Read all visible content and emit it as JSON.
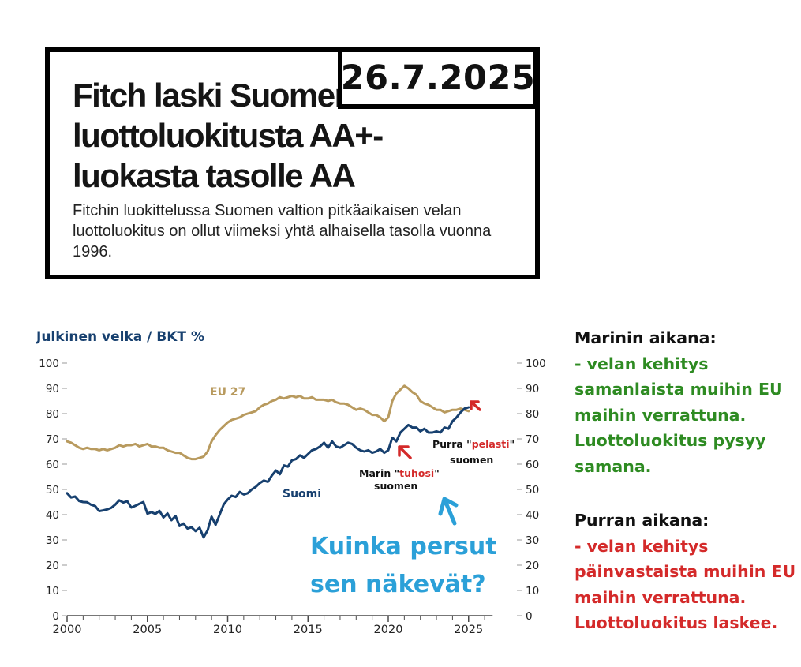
{
  "date_badge": "26.7.2025",
  "headline": "Fitch laski Suomen luottoluokitusta AA+-luokasta tasolle AA",
  "lede": "Fitchin luokittelussa Suomen valtion pitkäaikaisen velan luottoluokitus on ollut viimeksi yhtä alhaisella tasolla vuonna 1996.",
  "colors": {
    "suomi": "#17406f",
    "eu27": "#b89a5e",
    "axis": "#4a4a4a",
    "blue_text": "#2ba0d8",
    "green": "#2e8b22",
    "red": "#d42a2a"
  },
  "chart_data": {
    "type": "line",
    "title": "Julkinen velka / BKT %",
    "xlim": [
      2000,
      2026.5
    ],
    "ylim": [
      0,
      100
    ],
    "x_ticks": [
      2000,
      2005,
      2010,
      2015,
      2020,
      2025
    ],
    "y_ticks": [
      0,
      10,
      20,
      30,
      40,
      50,
      60,
      70,
      80,
      90,
      100
    ],
    "series": [
      {
        "name": "Suomi",
        "color": "#17406f",
        "points": [
          [
            2000.0,
            48.5
          ],
          [
            2000.25,
            46.8
          ],
          [
            2000.5,
            47.2
          ],
          [
            2000.75,
            45.4
          ],
          [
            2001.0,
            45.0
          ],
          [
            2001.25,
            44.9
          ],
          [
            2001.5,
            43.9
          ],
          [
            2001.75,
            43.4
          ],
          [
            2002.0,
            41.4
          ],
          [
            2002.25,
            41.7
          ],
          [
            2002.5,
            42.1
          ],
          [
            2002.75,
            42.7
          ],
          [
            2003.0,
            44.0
          ],
          [
            2003.25,
            45.7
          ],
          [
            2003.5,
            44.8
          ],
          [
            2003.75,
            45.3
          ],
          [
            2004.0,
            42.8
          ],
          [
            2004.25,
            43.5
          ],
          [
            2004.5,
            44.3
          ],
          [
            2004.75,
            45.0
          ],
          [
            2005.0,
            40.4
          ],
          [
            2005.25,
            41.0
          ],
          [
            2005.5,
            40.3
          ],
          [
            2005.75,
            41.5
          ],
          [
            2006.0,
            38.9
          ],
          [
            2006.25,
            40.5
          ],
          [
            2006.5,
            37.8
          ],
          [
            2006.75,
            39.5
          ],
          [
            2007.0,
            35.5
          ],
          [
            2007.25,
            36.5
          ],
          [
            2007.5,
            34.5
          ],
          [
            2007.75,
            35.0
          ],
          [
            2008.0,
            33.5
          ],
          [
            2008.25,
            34.8
          ],
          [
            2008.5,
            31.0
          ],
          [
            2008.75,
            33.8
          ],
          [
            2009.0,
            39.2
          ],
          [
            2009.25,
            36.0
          ],
          [
            2009.5,
            40.0
          ],
          [
            2009.75,
            44.0
          ],
          [
            2010.0,
            46.0
          ],
          [
            2010.25,
            47.5
          ],
          [
            2010.5,
            47.0
          ],
          [
            2010.75,
            49.0
          ],
          [
            2011.0,
            48.0
          ],
          [
            2011.25,
            48.5
          ],
          [
            2011.5,
            50.0
          ],
          [
            2011.75,
            51.0
          ],
          [
            2012.0,
            52.5
          ],
          [
            2012.25,
            53.5
          ],
          [
            2012.5,
            53.0
          ],
          [
            2012.75,
            55.5
          ],
          [
            2013.0,
            57.5
          ],
          [
            2013.25,
            56.0
          ],
          [
            2013.5,
            59.5
          ],
          [
            2013.75,
            59.0
          ],
          [
            2014.0,
            61.5
          ],
          [
            2014.25,
            62.0
          ],
          [
            2014.5,
            63.5
          ],
          [
            2014.75,
            62.5
          ],
          [
            2015.0,
            64.0
          ],
          [
            2015.25,
            65.5
          ],
          [
            2015.5,
            66.0
          ],
          [
            2015.75,
            67.0
          ],
          [
            2016.0,
            68.5
          ],
          [
            2016.25,
            66.5
          ],
          [
            2016.5,
            69.0
          ],
          [
            2016.75,
            67.0
          ],
          [
            2017.0,
            66.5
          ],
          [
            2017.25,
            67.5
          ],
          [
            2017.5,
            68.5
          ],
          [
            2017.75,
            68.0
          ],
          [
            2018.0,
            66.5
          ],
          [
            2018.25,
            65.5
          ],
          [
            2018.5,
            65.0
          ],
          [
            2018.75,
            65.5
          ],
          [
            2019.0,
            64.5
          ],
          [
            2019.25,
            65.0
          ],
          [
            2019.5,
            66.0
          ],
          [
            2019.75,
            64.5
          ],
          [
            2020.0,
            65.5
          ],
          [
            2020.25,
            70.5
          ],
          [
            2020.5,
            69.0
          ],
          [
            2020.75,
            72.5
          ],
          [
            2021.0,
            74.0
          ],
          [
            2021.25,
            75.5
          ],
          [
            2021.5,
            74.5
          ],
          [
            2021.75,
            74.5
          ],
          [
            2022.0,
            73.0
          ],
          [
            2022.25,
            74.0
          ],
          [
            2022.5,
            72.5
          ],
          [
            2022.75,
            72.5
          ],
          [
            2023.0,
            73.0
          ],
          [
            2023.25,
            72.5
          ],
          [
            2023.5,
            74.5
          ],
          [
            2023.75,
            74.0
          ],
          [
            2024.0,
            77.0
          ],
          [
            2024.25,
            78.5
          ],
          [
            2024.5,
            80.5
          ],
          [
            2024.75,
            82.0
          ],
          [
            2025.0,
            82.5
          ]
        ]
      },
      {
        "name": "EU 27",
        "color": "#b89a5e",
        "points": [
          [
            2000.0,
            69.0
          ],
          [
            2000.25,
            68.5
          ],
          [
            2000.5,
            67.5
          ],
          [
            2000.75,
            66.5
          ],
          [
            2001.0,
            66.0
          ],
          [
            2001.25,
            66.5
          ],
          [
            2001.5,
            66.0
          ],
          [
            2001.75,
            66.0
          ],
          [
            2002.0,
            65.5
          ],
          [
            2002.25,
            66.0
          ],
          [
            2002.5,
            65.5
          ],
          [
            2002.75,
            66.0
          ],
          [
            2003.0,
            66.5
          ],
          [
            2003.25,
            67.5
          ],
          [
            2003.5,
            67.0
          ],
          [
            2003.75,
            67.5
          ],
          [
            2004.0,
            67.5
          ],
          [
            2004.25,
            68.0
          ],
          [
            2004.5,
            67.0
          ],
          [
            2004.75,
            67.5
          ],
          [
            2005.0,
            68.0
          ],
          [
            2005.25,
            67.0
          ],
          [
            2005.5,
            67.0
          ],
          [
            2005.75,
            66.5
          ],
          [
            2006.0,
            66.5
          ],
          [
            2006.25,
            65.5
          ],
          [
            2006.5,
            65.0
          ],
          [
            2006.75,
            64.5
          ],
          [
            2007.0,
            64.5
          ],
          [
            2007.25,
            63.5
          ],
          [
            2007.5,
            62.5
          ],
          [
            2007.75,
            62.0
          ],
          [
            2008.0,
            62.0
          ],
          [
            2008.25,
            62.5
          ],
          [
            2008.5,
            63.0
          ],
          [
            2008.75,
            65.0
          ],
          [
            2009.0,
            69.0
          ],
          [
            2009.25,
            71.5
          ],
          [
            2009.5,
            73.5
          ],
          [
            2009.75,
            75.0
          ],
          [
            2010.0,
            76.5
          ],
          [
            2010.25,
            77.5
          ],
          [
            2010.5,
            78.0
          ],
          [
            2010.75,
            78.5
          ],
          [
            2011.0,
            79.5
          ],
          [
            2011.25,
            80.0
          ],
          [
            2011.5,
            80.5
          ],
          [
            2011.75,
            81.0
          ],
          [
            2012.0,
            82.5
          ],
          [
            2012.25,
            83.5
          ],
          [
            2012.5,
            84.0
          ],
          [
            2012.75,
            85.0
          ],
          [
            2013.0,
            85.5
          ],
          [
            2013.25,
            86.5
          ],
          [
            2013.5,
            86.0
          ],
          [
            2013.75,
            86.5
          ],
          [
            2014.0,
            87.0
          ],
          [
            2014.25,
            86.5
          ],
          [
            2014.5,
            87.0
          ],
          [
            2014.75,
            86.0
          ],
          [
            2015.0,
            86.0
          ],
          [
            2015.25,
            86.5
          ],
          [
            2015.5,
            85.5
          ],
          [
            2015.75,
            85.5
          ],
          [
            2016.0,
            85.5
          ],
          [
            2016.25,
            85.0
          ],
          [
            2016.5,
            85.5
          ],
          [
            2016.75,
            84.5
          ],
          [
            2017.0,
            84.0
          ],
          [
            2017.25,
            84.0
          ],
          [
            2017.5,
            83.5
          ],
          [
            2017.75,
            82.5
          ],
          [
            2018.0,
            81.5
          ],
          [
            2018.25,
            82.0
          ],
          [
            2018.5,
            81.5
          ],
          [
            2018.75,
            80.5
          ],
          [
            2019.0,
            79.5
          ],
          [
            2019.25,
            79.5
          ],
          [
            2019.5,
            78.5
          ],
          [
            2019.75,
            77.0
          ],
          [
            2020.0,
            78.5
          ],
          [
            2020.25,
            85.0
          ],
          [
            2020.5,
            88.0
          ],
          [
            2020.75,
            89.5
          ],
          [
            2021.0,
            91.0
          ],
          [
            2021.25,
            90.0
          ],
          [
            2021.5,
            88.5
          ],
          [
            2021.75,
            87.5
          ],
          [
            2022.0,
            85.0
          ],
          [
            2022.25,
            84.0
          ],
          [
            2022.5,
            83.5
          ],
          [
            2022.75,
            82.5
          ],
          [
            2023.0,
            81.5
          ],
          [
            2023.25,
            81.5
          ],
          [
            2023.5,
            80.5
          ],
          [
            2023.75,
            81.0
          ],
          [
            2024.0,
            81.5
          ],
          [
            2024.25,
            81.5
          ],
          [
            2024.5,
            82.0
          ],
          [
            2024.75,
            81.5
          ],
          [
            2025.0,
            81.0
          ]
        ]
      }
    ],
    "series_labels": {
      "eu27": "EU 27",
      "suomi": "Suomi"
    },
    "annotations": {
      "marin": {
        "prefix": "Marin \"",
        "word": "tuhosi",
        "suffix": "\"",
        "line2": "suomen"
      },
      "purra": {
        "prefix": "Purra \"",
        "word": "pelasti",
        "suffix": "\"",
        "line2": "suomen"
      },
      "question": {
        "line1": "Kuinka persut",
        "line2": "sen näkevät?"
      }
    },
    "grid": false,
    "legend": "inline"
  },
  "side_text": {
    "marin": {
      "heading": "Marinin aikana:",
      "lines": [
        "- velan kehitys",
        "samanlaista muihin EU",
        "maihin verrattuna.",
        "Luottoluokitus pysyy",
        "samana."
      ]
    },
    "purra": {
      "heading": "Purran aikana:",
      "lines": [
        "- velan kehitys",
        "päinvastaista muihin EU",
        "maihin verrattuna.",
        "Luottoluokitus laskee."
      ]
    }
  }
}
